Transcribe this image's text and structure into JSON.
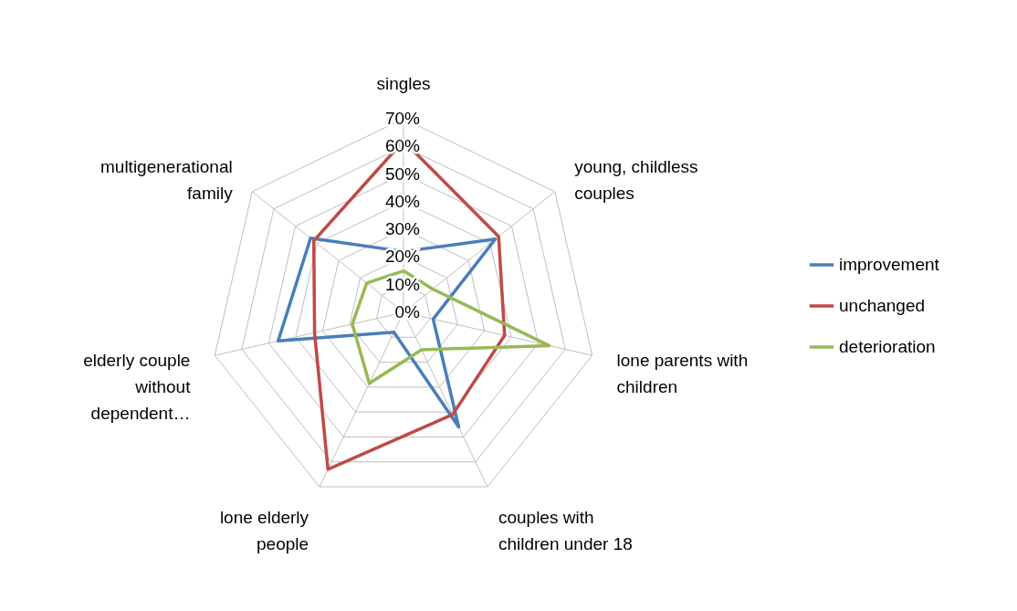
{
  "chart_data": {
    "type": "radar",
    "categories": [
      "singles",
      "young, childless couples",
      "lone parents with children",
      "couples with children under 18",
      "lone elderly people",
      "elderly couple without dependent…",
      "multigenerational family"
    ],
    "series": [
      {
        "name": "improvement",
        "color": "#4a7ebb",
        "values": [
          22,
          42.5,
          11,
          46,
          8,
          46.5,
          43
        ]
      },
      {
        "name": "unchanged",
        "color": "#be4b48",
        "values": [
          62,
          44,
          37.5,
          41,
          63,
          33,
          41.5
        ]
      },
      {
        "name": "deterioration",
        "color": "#98b954",
        "values": [
          15,
          13.5,
          54,
          15,
          28.5,
          19,
          17
        ]
      }
    ],
    "ylim": [
      0,
      70
    ],
    "yticks": [
      {
        "value": 0,
        "label": "0%"
      },
      {
        "value": 10,
        "label": "10%"
      },
      {
        "value": 20,
        "label": "20%"
      },
      {
        "value": 30,
        "label": "30%"
      },
      {
        "value": 40,
        "label": "40%"
      },
      {
        "value": 50,
        "label": "50%"
      },
      {
        "value": 60,
        "label": "60%"
      },
      {
        "value": 70,
        "label": "70%"
      }
    ],
    "grid": true,
    "legend": "right",
    "marker": "none",
    "line_style": "solid"
  }
}
